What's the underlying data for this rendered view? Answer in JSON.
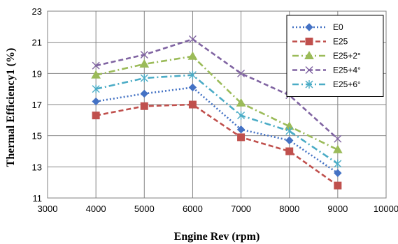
{
  "chart_data": {
    "type": "line",
    "xlabel": "Engine Rev (rpm)",
    "ylabel": "Thermal Efficiency1 (%)",
    "xlim": [
      3000,
      10000
    ],
    "ylim": [
      11,
      23
    ],
    "xticks": [
      3000,
      4000,
      5000,
      6000,
      7000,
      8000,
      9000,
      10000
    ],
    "yticks": [
      11,
      13,
      15,
      17,
      19,
      21,
      23
    ],
    "grid": true,
    "legend_position": "top-right",
    "x": [
      4000,
      5000,
      6000,
      7000,
      8000,
      9000
    ],
    "series": [
      {
        "name": "E0",
        "values": [
          17.2,
          17.7,
          18.1,
          15.4,
          14.7,
          12.6
        ],
        "color": "#4472C4",
        "marker": "diamond",
        "dash": "dotted"
      },
      {
        "name": "E25",
        "values": [
          16.3,
          16.9,
          17.0,
          14.9,
          14.0,
          11.8
        ],
        "color": "#C0504D",
        "marker": "square",
        "dash": "dashed"
      },
      {
        "name": "E25+2°",
        "values": [
          18.9,
          19.6,
          20.1,
          17.1,
          15.6,
          14.1
        ],
        "color": "#9BBB59",
        "marker": "triangle",
        "dash": "dash-dot"
      },
      {
        "name": "E25+4°",
        "values": [
          19.5,
          20.2,
          21.2,
          19.0,
          17.6,
          14.8
        ],
        "color": "#8064A2",
        "marker": "x",
        "dash": "dashed"
      },
      {
        "name": "E25+6°",
        "values": [
          18.0,
          18.7,
          18.9,
          16.3,
          15.3,
          13.2
        ],
        "color": "#4BACC6",
        "marker": "star",
        "dash": "dash-dot"
      }
    ]
  }
}
